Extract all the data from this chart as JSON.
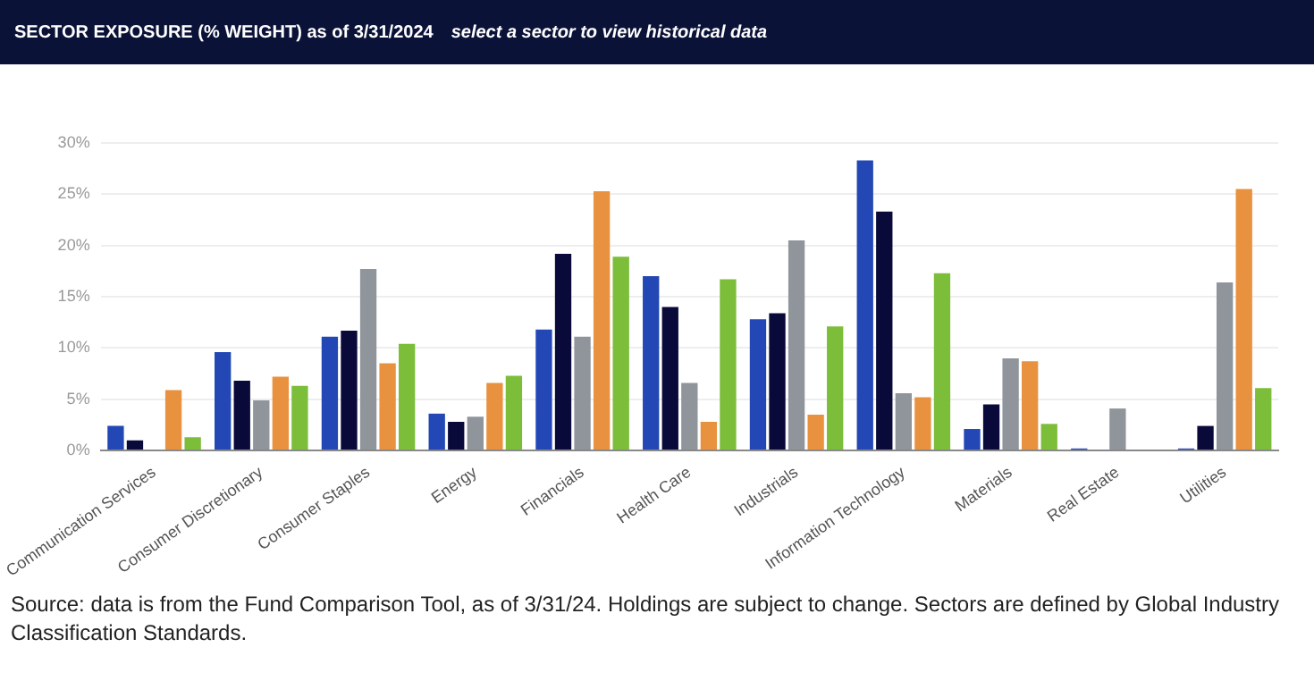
{
  "chart_data": {
    "type": "bar",
    "title": "SECTOR EXPOSURE (% WEIGHT) as of 3/31/2024",
    "subtitle": "select a sector to view historical data",
    "categories": [
      "Communication Services",
      "Consumer Discretionary",
      "Consumer Staples",
      "Energy",
      "Financials",
      "Health Care",
      "Industrials",
      "Information Technology",
      "Materials",
      "Real Estate",
      "Utilities"
    ],
    "series": [
      {
        "color": "#2347b5",
        "values": [
          2.4,
          9.6,
          11.1,
          3.6,
          11.8,
          17.0,
          12.8,
          28.3,
          2.1,
          0.2,
          0.2
        ]
      },
      {
        "color": "#0a0a3a",
        "values": [
          1.0,
          6.8,
          11.7,
          2.8,
          19.2,
          14.0,
          13.4,
          23.3,
          4.5,
          0,
          2.4
        ]
      },
      {
        "color": "#8f959b",
        "values": [
          0,
          4.9,
          17.7,
          3.3,
          11.1,
          6.6,
          20.5,
          5.6,
          9.0,
          4.1,
          16.4
        ]
      },
      {
        "color": "#e8913f",
        "values": [
          5.9,
          7.2,
          8.5,
          6.6,
          25.3,
          2.8,
          3.5,
          5.2,
          8.7,
          0,
          25.5
        ]
      },
      {
        "color": "#7cbd3a",
        "values": [
          1.3,
          6.3,
          10.4,
          7.3,
          18.9,
          16.7,
          12.1,
          17.3,
          2.6,
          0,
          6.1
        ]
      }
    ],
    "ylim": [
      0,
      30
    ],
    "yticks": [
      {
        "value": 0,
        "label": "0%"
      },
      {
        "value": 5,
        "label": "5%"
      },
      {
        "value": 10,
        "label": "10%"
      },
      {
        "value": 15,
        "label": "15%"
      },
      {
        "value": 20,
        "label": "20%"
      },
      {
        "value": 25,
        "label": "25%"
      },
      {
        "value": 30,
        "label": "30%"
      }
    ],
    "grid": "y",
    "annotations": [
      "Source: data is from the Fund Comparison Tool, as of 3/31/24. Holdings are subject to change. Sectors are defined by Global Industry Classification Standards."
    ]
  }
}
